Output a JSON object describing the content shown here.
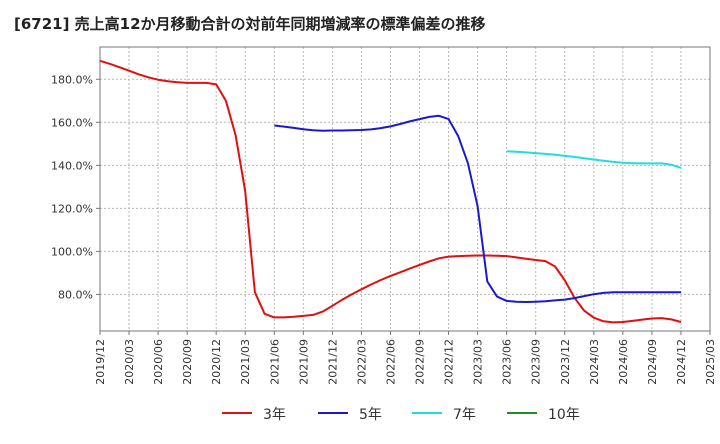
{
  "chart_data": {
    "type": "line",
    "title": "[6721]  売上高12か月移動合計の対前年同期増減率の標準偏差の推移",
    "xlabel": "",
    "ylabel": "",
    "ylim": [
      63,
      195
    ],
    "yticks": [
      80,
      100,
      120,
      140,
      160,
      180
    ],
    "ytick_labels": [
      "80.0%",
      "100.0%",
      "120.0%",
      "140.0%",
      "160.0%",
      "180.0%"
    ],
    "x_range": [
      "2019-12",
      "2025-03"
    ],
    "x_tick_labels": [
      "2019/12",
      "2020/03",
      "2020/06",
      "2020/09",
      "2020/12",
      "2021/03",
      "2021/06",
      "2021/09",
      "2021/12",
      "2022/03",
      "2022/06",
      "2022/09",
      "2022/12",
      "2023/03",
      "2023/06",
      "2023/09",
      "2023/12",
      "2024/03",
      "2024/06",
      "2024/09",
      "2024/12",
      "2025/03"
    ],
    "grid": true,
    "legend_position": "bottom",
    "series": [
      {
        "name": "3年",
        "color": "#dd1111",
        "points": [
          [
            "2019-12",
            188.6
          ],
          [
            "2020-01",
            187.2
          ],
          [
            "2020-02",
            185.6
          ],
          [
            "2020-03",
            184.0
          ],
          [
            "2020-04",
            182.3
          ],
          [
            "2020-05",
            180.9
          ],
          [
            "2020-06",
            179.8
          ],
          [
            "2020-07",
            179.1
          ],
          [
            "2020-08",
            178.6
          ],
          [
            "2020-09",
            178.3
          ],
          [
            "2020-10",
            178.3
          ],
          [
            "2020-11",
            178.3
          ],
          [
            "2020-12",
            177.6
          ],
          [
            "2021-01",
            170.0
          ],
          [
            "2021-02",
            154.0
          ],
          [
            "2021-03",
            128.0
          ],
          [
            "2021-04",
            81.0
          ],
          [
            "2021-05",
            71.0
          ],
          [
            "2021-06",
            69.3
          ],
          [
            "2021-07",
            69.3
          ],
          [
            "2021-08",
            69.6
          ],
          [
            "2021-09",
            70.0
          ],
          [
            "2021-10",
            70.5
          ],
          [
            "2021-11",
            72.0
          ],
          [
            "2021-12",
            74.7
          ],
          [
            "2022-01",
            77.5
          ],
          [
            "2022-02",
            80.0
          ],
          [
            "2022-03",
            82.4
          ],
          [
            "2022-04",
            84.6
          ],
          [
            "2022-05",
            86.7
          ],
          [
            "2022-06",
            88.6
          ],
          [
            "2022-07",
            90.3
          ],
          [
            "2022-08",
            92.0
          ],
          [
            "2022-09",
            93.7
          ],
          [
            "2022-10",
            95.3
          ],
          [
            "2022-11",
            96.8
          ],
          [
            "2022-12",
            97.6
          ],
          [
            "2023-01",
            97.8
          ],
          [
            "2023-02",
            98.0
          ],
          [
            "2023-03",
            98.1
          ],
          [
            "2023-04",
            98.1
          ],
          [
            "2023-05",
            98.0
          ],
          [
            "2023-06",
            97.8
          ],
          [
            "2023-07",
            97.2
          ],
          [
            "2023-08",
            96.6
          ],
          [
            "2023-09",
            96.0
          ],
          [
            "2023-10",
            95.5
          ],
          [
            "2023-11",
            93.0
          ],
          [
            "2023-12",
            86.5
          ],
          [
            "2024-01",
            78.5
          ],
          [
            "2024-02",
            72.5
          ],
          [
            "2024-03",
            69.2
          ],
          [
            "2024-04",
            67.5
          ],
          [
            "2024-05",
            67.0
          ],
          [
            "2024-06",
            67.2
          ],
          [
            "2024-07",
            67.7
          ],
          [
            "2024-08",
            68.3
          ],
          [
            "2024-09",
            68.8
          ],
          [
            "2024-10",
            69.0
          ],
          [
            "2024-11",
            68.4
          ],
          [
            "2024-12",
            67.2
          ]
        ]
      },
      {
        "name": "5年",
        "color": "#1a1acc",
        "points": [
          [
            "2021-06",
            158.5
          ],
          [
            "2021-07",
            158.0
          ],
          [
            "2021-08",
            157.4
          ],
          [
            "2021-09",
            156.8
          ],
          [
            "2021-10",
            156.3
          ],
          [
            "2021-11",
            156.1
          ],
          [
            "2021-12",
            156.2
          ],
          [
            "2022-01",
            156.2
          ],
          [
            "2022-02",
            156.3
          ],
          [
            "2022-03",
            156.4
          ],
          [
            "2022-04",
            156.7
          ],
          [
            "2022-05",
            157.3
          ],
          [
            "2022-06",
            158.1
          ],
          [
            "2022-07",
            159.2
          ],
          [
            "2022-08",
            160.4
          ],
          [
            "2022-09",
            161.5
          ],
          [
            "2022-10",
            162.5
          ],
          [
            "2022-11",
            163.0
          ],
          [
            "2022-12",
            161.5
          ],
          [
            "2023-01",
            153.5
          ],
          [
            "2023-02",
            141.0
          ],
          [
            "2023-03",
            121.0
          ],
          [
            "2023-04",
            86.0
          ],
          [
            "2023-05",
            79.0
          ],
          [
            "2023-06",
            77.0
          ],
          [
            "2023-07",
            76.6
          ],
          [
            "2023-08",
            76.5
          ],
          [
            "2023-09",
            76.6
          ],
          [
            "2023-10",
            76.8
          ],
          [
            "2023-11",
            77.2
          ],
          [
            "2023-12",
            77.6
          ],
          [
            "2024-01",
            78.3
          ],
          [
            "2024-02",
            79.2
          ],
          [
            "2024-03",
            80.1
          ],
          [
            "2024-04",
            80.7
          ],
          [
            "2024-05",
            81.0
          ],
          [
            "2024-06",
            81.0
          ],
          [
            "2024-07",
            81.0
          ],
          [
            "2024-08",
            81.0
          ],
          [
            "2024-09",
            81.0
          ],
          [
            "2024-10",
            81.0
          ],
          [
            "2024-11",
            81.0
          ],
          [
            "2024-12",
            81.0
          ]
        ]
      },
      {
        "name": "7年",
        "color": "#22dddd",
        "points": [
          [
            "2023-06",
            146.5
          ],
          [
            "2023-07",
            146.3
          ],
          [
            "2023-08",
            146.0
          ],
          [
            "2023-09",
            145.7
          ],
          [
            "2023-10",
            145.3
          ],
          [
            "2023-11",
            144.9
          ],
          [
            "2023-12",
            144.4
          ],
          [
            "2024-01",
            143.9
          ],
          [
            "2024-02",
            143.3
          ],
          [
            "2024-03",
            142.7
          ],
          [
            "2024-04",
            142.1
          ],
          [
            "2024-05",
            141.6
          ],
          [
            "2024-06",
            141.2
          ],
          [
            "2024-07",
            141.0
          ],
          [
            "2024-08",
            140.9
          ],
          [
            "2024-09",
            140.9
          ],
          [
            "2024-10",
            140.9
          ],
          [
            "2024-11",
            140.3
          ],
          [
            "2024-12",
            138.8
          ]
        ]
      },
      {
        "name": "10年",
        "color": "#228b22",
        "points": []
      }
    ]
  }
}
